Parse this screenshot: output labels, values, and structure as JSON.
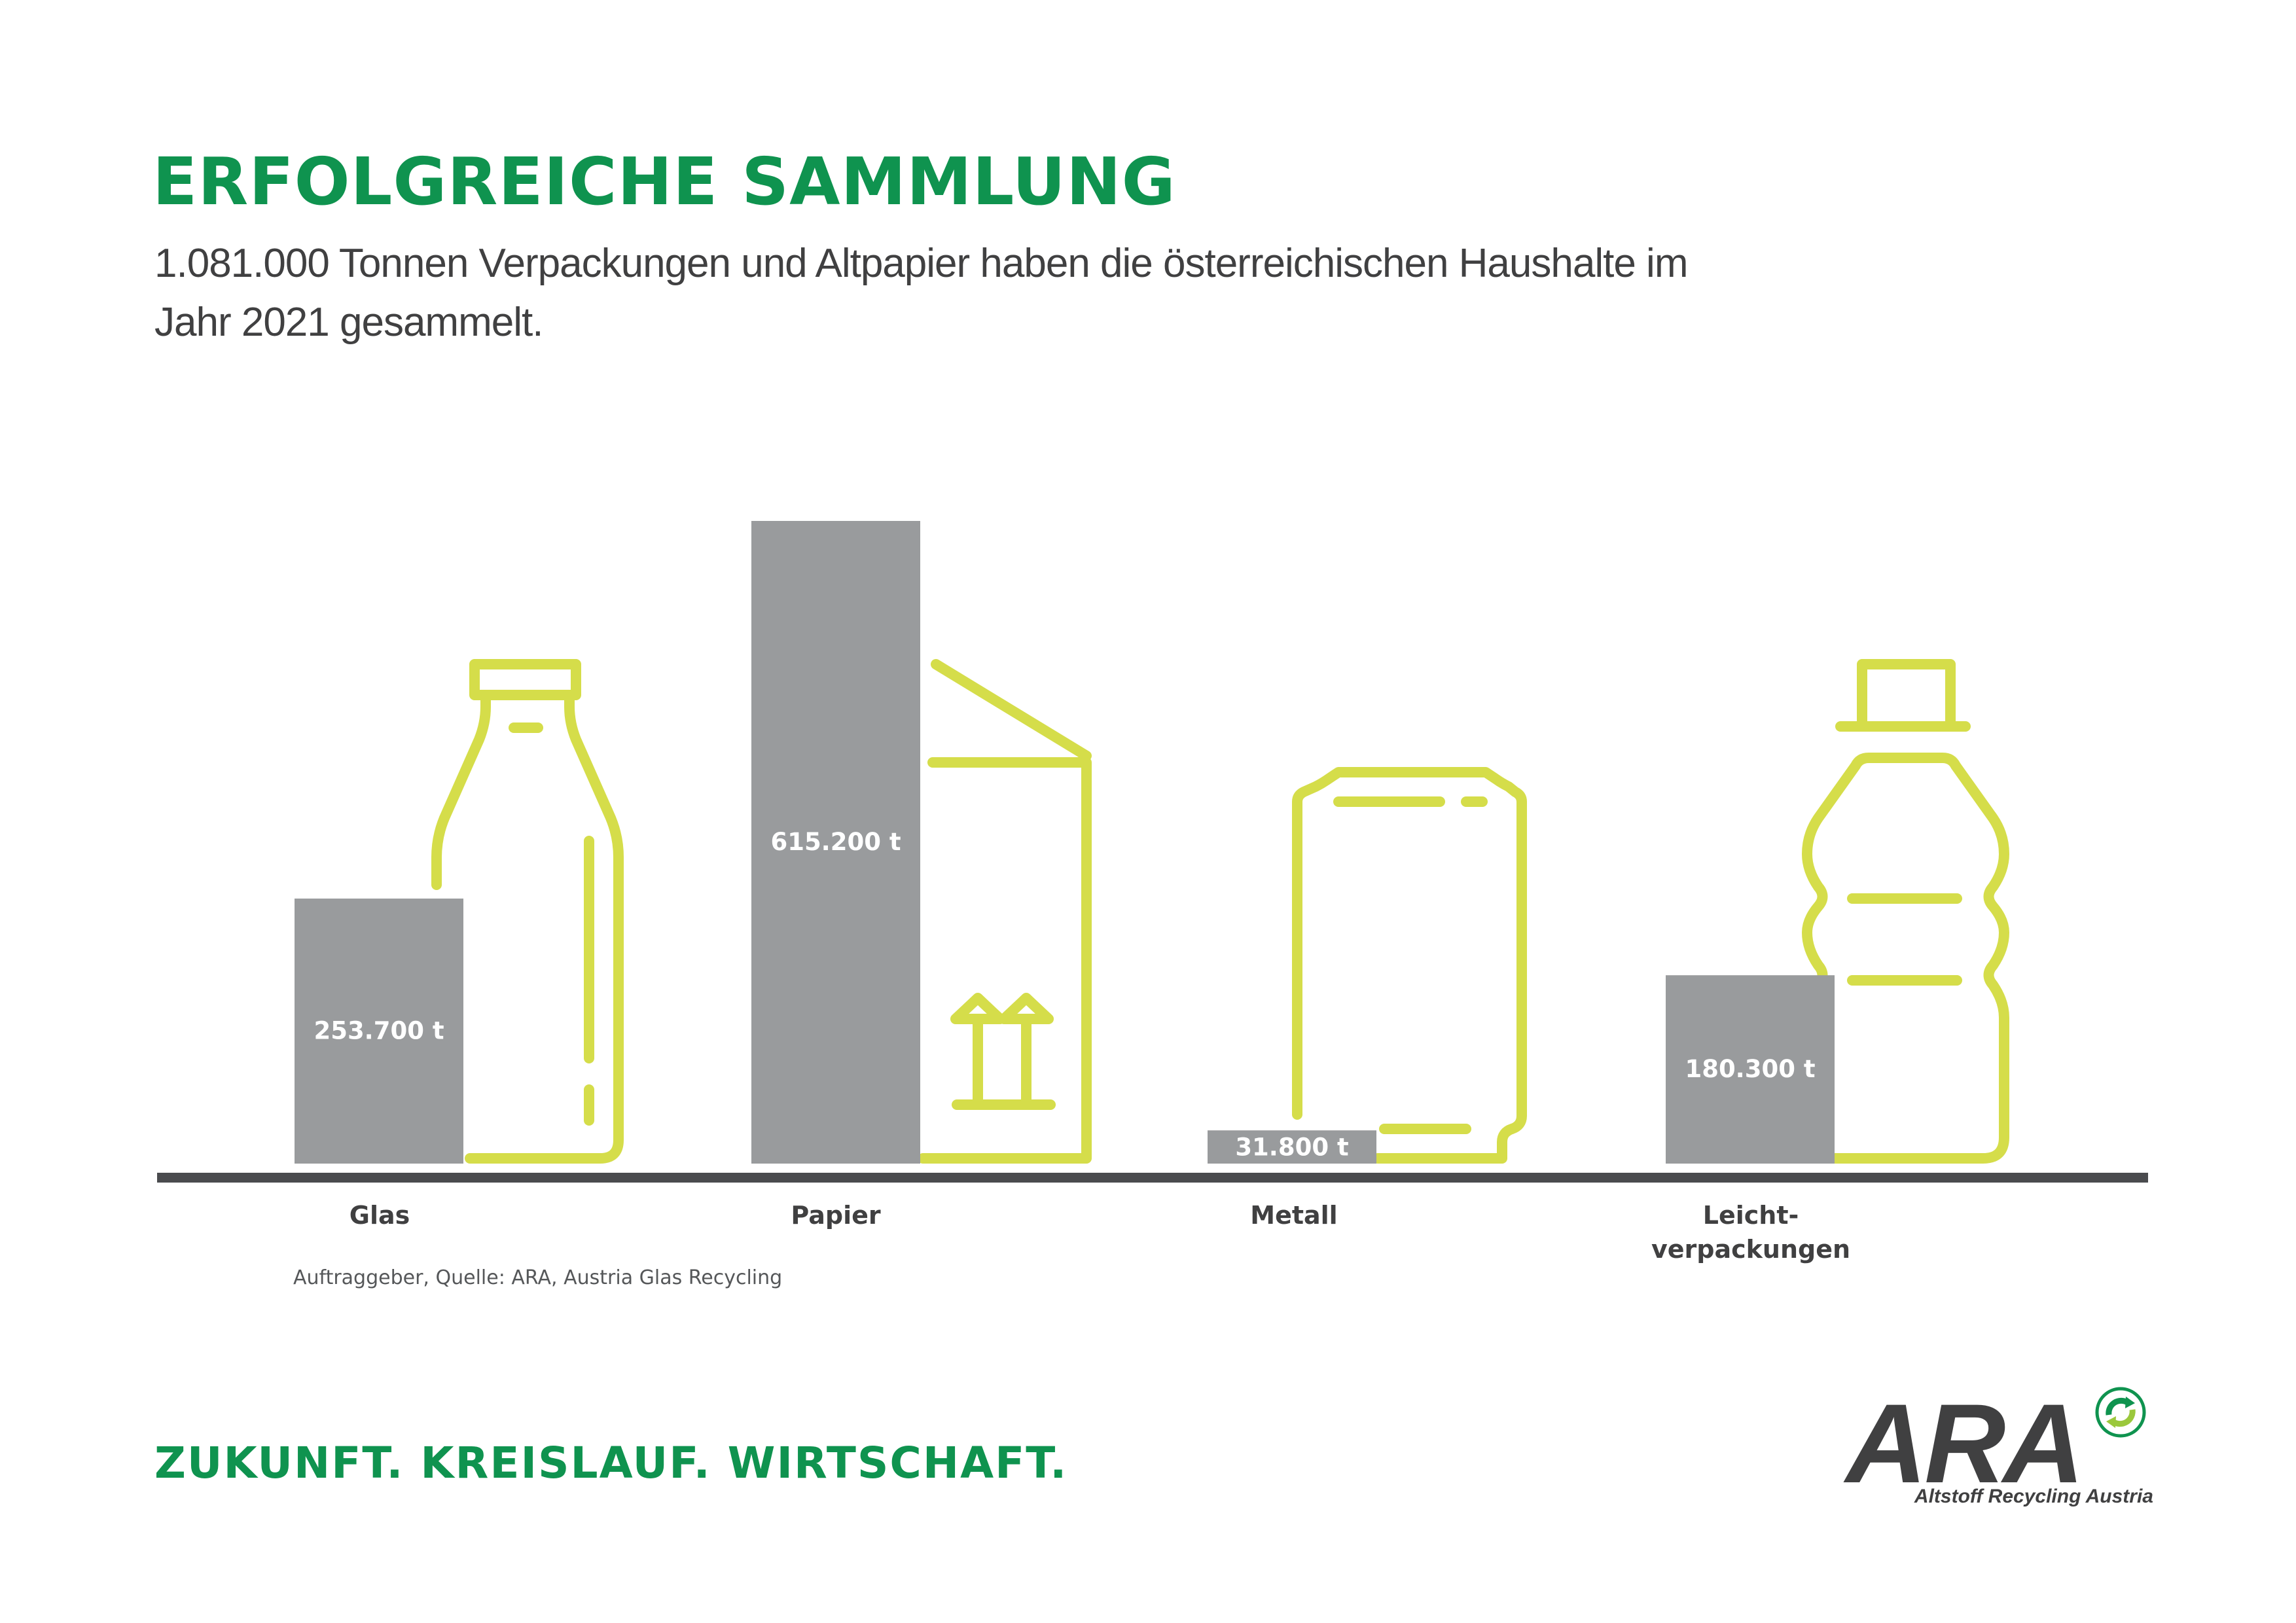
{
  "header": {
    "title": "ERFOLGREICHE SAMMLUNG",
    "subtitle": "1.081.000 Tonnen Verpackungen und Altpapier haben die österreichischen Haushalte im Jahr 2021 gesammelt."
  },
  "chart_data": {
    "type": "bar",
    "categories": [
      "Glas",
      "Papier",
      "Metall",
      "Leicht-\nverpackungen"
    ],
    "values": [
      253700,
      615200,
      31800,
      180300
    ],
    "unit": "t",
    "data_labels": [
      "253.700 t",
      "615.200 t",
      "31.800 t",
      "180.300 t"
    ],
    "icons": [
      "glass-bottle-icon",
      "paper-carton-icon",
      "metal-can-icon",
      "plastic-bottle-icon"
    ],
    "ylim": [
      0,
      615200
    ],
    "grid": false,
    "bar_color": "#999b9d",
    "icon_color": "#d5dd4a",
    "axis_color": "#4a4b4e"
  },
  "footer": {
    "source": "Auftraggeber, Quelle: ARA, Austria Glas Recycling",
    "slogan": "ZUKUNFT. KREISLAUF. WIRTSCHAFT."
  },
  "logo": {
    "text": "ARA",
    "subtitle": "Altstoff Recycling Austria"
  },
  "colors": {
    "brand_green": "#0f934f",
    "text_dark": "#404041"
  }
}
